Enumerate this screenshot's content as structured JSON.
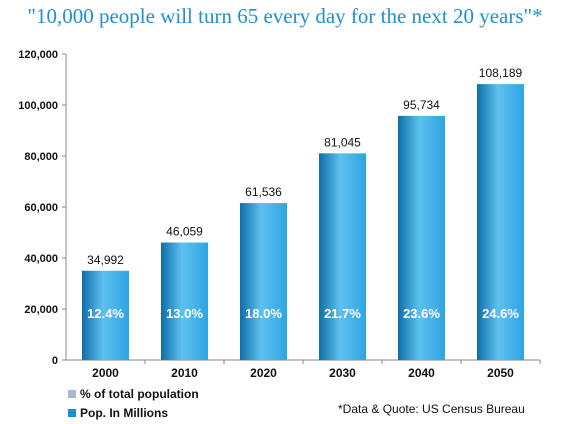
{
  "title": "\"10,000 people will turn 65 every day for the next 20 years\"*",
  "source_note": "*Data & Quote: US Census Bureau",
  "legend": [
    {
      "label": "% of total population",
      "color": "#a9b8d6"
    },
    {
      "label": "Pop. In Millions",
      "color": "#1d8fd0"
    }
  ],
  "colors": {
    "bar_dark": "#0e6fa8",
    "bar_mid": "#2ea4e3",
    "bar_light": "#5fc0f0",
    "title": "#1f8fd0"
  },
  "chart_data": {
    "type": "bar",
    "categories": [
      "2000",
      "2010",
      "2020",
      "2030",
      "2040",
      "2050"
    ],
    "series": [
      {
        "name": "Pop. In Millions",
        "values": [
          34992,
          46059,
          61536,
          81045,
          95734,
          108189
        ]
      },
      {
        "name": "% of total population",
        "values": [
          12.4,
          13.0,
          18.0,
          21.7,
          23.6,
          24.6
        ]
      }
    ],
    "value_labels": [
      "34,992",
      "46,059",
      "61,536",
      "81,045",
      "95,734",
      "108,189"
    ],
    "percent_labels": [
      "12.4%",
      "13.0%",
      "18.0%",
      "21.7%",
      "23.6%",
      "24.6%"
    ],
    "yticks": [
      "0",
      "20,000",
      "40,000",
      "60,000",
      "80,000",
      "100,000",
      "120,000"
    ],
    "ylim": [
      0,
      120000
    ],
    "xlabel": "",
    "ylabel": "",
    "grid": false,
    "legend_position": "bottom-left"
  }
}
